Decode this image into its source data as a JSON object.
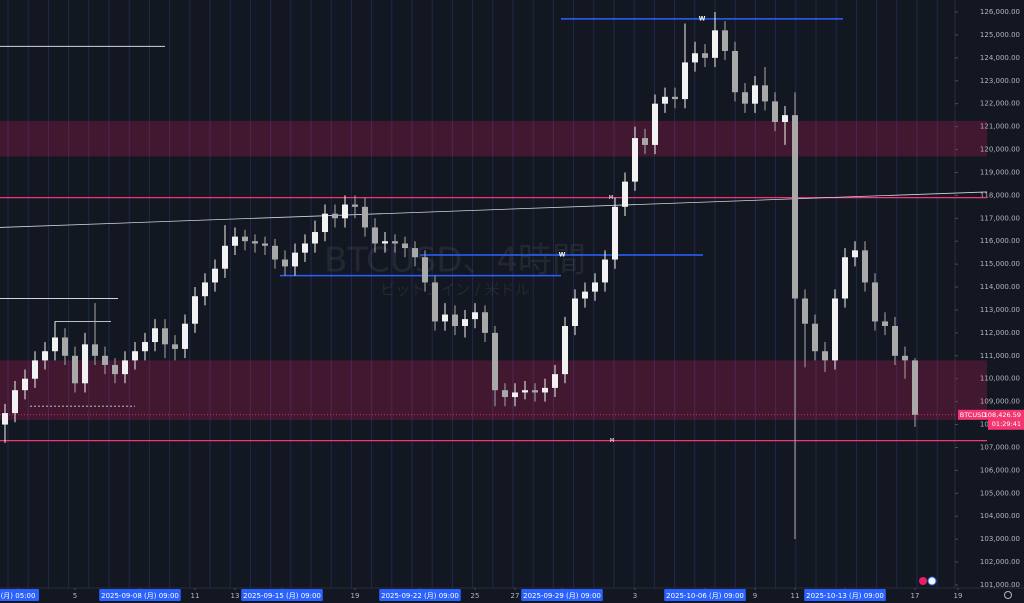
{
  "chart_data": {
    "type": "candlestick",
    "watermark": "BTCUSD、4時間",
    "watermark_subtitle": "ビットコイン / 米ドル",
    "symbol": "BTCUSD",
    "current_price": {
      "value": 108426.59,
      "label": "108,426.59"
    },
    "countdown": "01:29:41",
    "up_color": "#f2f2f2",
    "down_color": "#a8a8a8",
    "xlim": [
      -0.5,
      95
    ],
    "ylim": [
      101000,
      126000
    ],
    "open": [
      108000,
      108500,
      109500,
      110000,
      110800,
      111200,
      111800,
      111000,
      109800,
      111500,
      111000,
      110600,
      110200,
      110800,
      111200,
      111600,
      112200,
      111500,
      111300,
      112400,
      113600,
      114200,
      114800,
      115800,
      116200,
      116000,
      115900,
      115800,
      115200,
      114900,
      115500,
      115900,
      116400,
      117200,
      117000,
      117600,
      117500,
      116600,
      115900,
      116000,
      115900,
      115700,
      115300,
      114200,
      112500,
      112800,
      112300,
      112600,
      112900,
      112000,
      109500,
      109200,
      109400,
      109500,
      109400,
      109600,
      110200,
      112300,
      113500,
      113800,
      114200,
      115200,
      117500,
      118600,
      120500,
      120200,
      122000,
      122300,
      122200,
      123800,
      124200,
      124000,
      125200,
      124300,
      122500,
      122000,
      122800,
      122100,
      121200,
      121500,
      113500,
      112400,
      111200,
      110800,
      113500,
      115300,
      115600,
      114200,
      112500,
      112300,
      111000,
      110800
    ],
    "high": [
      108900,
      109900,
      110400,
      111200,
      111600,
      112500,
      112200,
      111400,
      112000,
      113300,
      111400,
      110900,
      111200,
      111600,
      112000,
      112600,
      112600,
      111900,
      112800,
      114000,
      114600,
      115200,
      116700,
      116600,
      116500,
      116300,
      116200,
      116100,
      115600,
      115900,
      116300,
      116900,
      117600,
      117600,
      118000,
      118000,
      117900,
      117000,
      116400,
      116300,
      116200,
      116000,
      115600,
      114500,
      113300,
      113200,
      113000,
      113300,
      113200,
      112300,
      109800,
      109800,
      109900,
      109800,
      110000,
      110600,
      112700,
      113900,
      114200,
      114600,
      115600,
      117900,
      119000,
      121000,
      120900,
      122400,
      122700,
      122700,
      125500,
      124700,
      124600,
      126000,
      125600,
      124700,
      122900,
      123200,
      123600,
      122500,
      121900,
      122500,
      113900,
      112800,
      111600,
      113900,
      115700,
      116000,
      116000,
      114600,
      112900,
      112700,
      111400,
      110900
    ],
    "low": [
      107200,
      108100,
      109100,
      109600,
      110400,
      110800,
      110600,
      109400,
      109400,
      110600,
      110200,
      109800,
      109800,
      110400,
      110800,
      111200,
      110900,
      110800,
      110900,
      112000,
      113200,
      113800,
      114400,
      115400,
      115600,
      115500,
      115400,
      114800,
      114500,
      114500,
      115100,
      115500,
      116000,
      116600,
      116600,
      117000,
      116200,
      115500,
      115500,
      115500,
      115300,
      114900,
      113800,
      112100,
      112100,
      111900,
      111800,
      112200,
      111600,
      108800,
      108800,
      108800,
      109100,
      109000,
      109000,
      109200,
      109800,
      111900,
      113100,
      113400,
      113800,
      114800,
      117100,
      118200,
      119800,
      119800,
      121600,
      121800,
      121800,
      123400,
      123600,
      123600,
      123900,
      122100,
      121600,
      121600,
      121700,
      120800,
      120200,
      103000,
      110500,
      110800,
      110300,
      110400,
      113100,
      114900,
      113800,
      112100,
      111900,
      110600,
      110000,
      107900
    ],
    "close": [
      108500,
      109500,
      110000,
      110800,
      111200,
      111800,
      111000,
      109800,
      111500,
      111000,
      110600,
      110200,
      110800,
      111200,
      111600,
      112200,
      111500,
      111300,
      112400,
      113600,
      114200,
      114800,
      115800,
      116200,
      116000,
      115900,
      115800,
      115200,
      114900,
      115500,
      115900,
      116400,
      117200,
      117000,
      117600,
      117500,
      116600,
      115900,
      116000,
      115900,
      115700,
      115300,
      114200,
      112500,
      112800,
      112300,
      112600,
      112900,
      112000,
      109500,
      109200,
      109400,
      109500,
      109400,
      109600,
      110200,
      112300,
      113500,
      113800,
      114200,
      115200,
      117500,
      118600,
      120500,
      120200,
      122000,
      122300,
      122200,
      123800,
      124200,
      124000,
      125200,
      124300,
      122500,
      122000,
      122800,
      122100,
      121200,
      121500,
      113500,
      112400,
      111200,
      110800,
      113500,
      115300,
      115600,
      114200,
      112500,
      112300,
      111000,
      110800,
      108426.59
    ],
    "zones": [
      {
        "from": 119700,
        "to": 121250,
        "color": "#e91e63"
      },
      {
        "from": 108200,
        "to": 110800,
        "color": "#e91e63"
      }
    ],
    "hlines": [
      {
        "price": 117900,
        "color": "#f23672",
        "marker": "M",
        "marker_at": 60.6
      },
      {
        "price": 107300,
        "color": "#f23672",
        "marker": "M",
        "marker_at": 60.7
      }
    ],
    "segments": [
      {
        "price": 125700,
        "start": 55.6,
        "end": 83.8,
        "color": "#2962ff",
        "marker": "W",
        "marker_at": 69.7
      },
      {
        "price": 115400,
        "start": 41.5,
        "end": 69.8,
        "color": "#2962ff",
        "marker": "W",
        "marker_at": 55.7
      },
      {
        "price": 114500,
        "start": 27.5,
        "end": 55.6,
        "color": "#2962ff"
      },
      {
        "price": 124500,
        "start": -0.5,
        "end": 16,
        "color": "#d1d4dc"
      },
      {
        "price": 113500,
        "start": -0.5,
        "end": 11.3,
        "color": "#d1d4dc"
      },
      {
        "price": 112500,
        "start": 5,
        "end": 10.6,
        "color": "#d1d4dc"
      },
      {
        "price": 108800,
        "start": 2.5,
        "end": 13,
        "color": "#d1d4dc",
        "dashed": true
      }
    ],
    "trendline": {
      "x": [
        -0.5,
        95
      ],
      "y": [
        116600,
        118100
      ],
      "color": "#d1d4dc"
    },
    "yticks": [
      {
        "value": 126000,
        "label": "126,000.00"
      },
      {
        "value": 125000,
        "label": "125,000.00"
      },
      {
        "value": 124000,
        "label": "124,000.00"
      },
      {
        "value": 123000,
        "label": "123,000.00"
      },
      {
        "value": 122000,
        "label": "122,000.00"
      },
      {
        "value": 121000,
        "label": "121,000.00"
      },
      {
        "value": 120000,
        "label": "120,000.00"
      },
      {
        "value": 119000,
        "label": "119,000.00"
      },
      {
        "value": 118000,
        "label": "118,000.00"
      },
      {
        "value": 117000,
        "label": "117,000.00"
      },
      {
        "value": 116000,
        "label": "116,000.00"
      },
      {
        "value": 115000,
        "label": "115,000.00"
      },
      {
        "value": 114000,
        "label": "114,000.00"
      },
      {
        "value": 113000,
        "label": "113,000.00"
      },
      {
        "value": 112000,
        "label": "112,000.00"
      },
      {
        "value": 111000,
        "label": "111,000.00"
      },
      {
        "value": 110000,
        "label": "110,000.00"
      },
      {
        "value": 109000,
        "label": "109,000.00"
      },
      {
        "value": 108000,
        "label": "108,000.00"
      },
      {
        "value": 107000,
        "label": "107,000.00"
      },
      {
        "value": 106000,
        "label": "106,000.00"
      },
      {
        "value": 105000,
        "label": "105,000.00"
      },
      {
        "value": 104000,
        "label": "104,000.00"
      },
      {
        "value": 103000,
        "label": "103,000.00"
      },
      {
        "value": 102000,
        "label": "102,000.00"
      },
      {
        "value": 101000,
        "label": "101,000.00"
      }
    ],
    "xticks": [
      {
        "value": 1.3,
        "label": "(月)  05:00"
      },
      {
        "value": 7,
        "label": "5"
      },
      {
        "value": 13.5,
        "label": "2025-09-08 (月)  09:00"
      },
      {
        "value": 19,
        "label": "11"
      },
      {
        "value": 23,
        "label": "13"
      },
      {
        "value": 27.7,
        "label": "2025-09-15 (月)  09:00"
      },
      {
        "value": 35,
        "label": "19"
      },
      {
        "value": 41.5,
        "label": "2025-09-22 (月)  09:00"
      },
      {
        "value": 47,
        "label": "25"
      },
      {
        "value": 51,
        "label": "27"
      },
      {
        "value": 55.7,
        "label": "2025-09-29 (月)  09:00"
      },
      {
        "value": 63,
        "label": "3"
      },
      {
        "value": 70,
        "label": "2025-10-06 (月)  09:00"
      },
      {
        "value": 75,
        "label": "9"
      },
      {
        "value": 79,
        "label": "11"
      },
      {
        "value": 84,
        "label": "2025-10-13 (月)  09:00"
      },
      {
        "value": 91,
        "label": "17"
      },
      {
        "value": 95.3,
        "label": "19"
      }
    ]
  }
}
